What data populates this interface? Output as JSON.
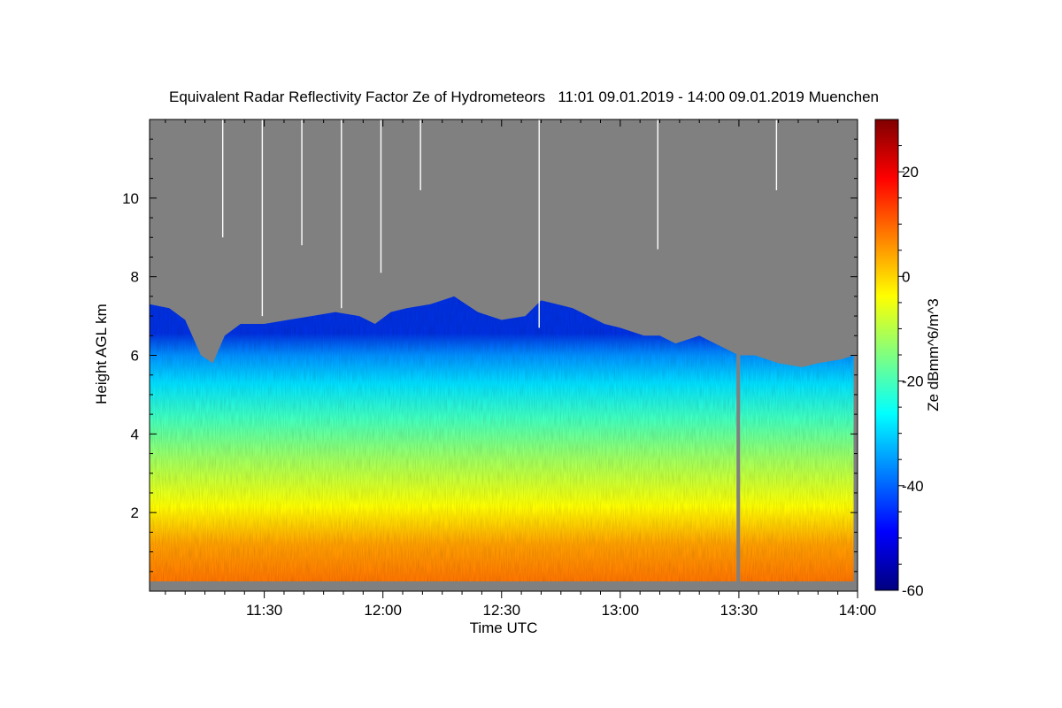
{
  "chart_data": {
    "type": "heatmap",
    "title": "Equivalent Radar Reflectivity Factor Ze of Hydrometeors   11:01 09.01.2019 - 14:00 09.01.2019 Muenchen",
    "xlabel": "Time UTC",
    "ylabel": "Height AGL km",
    "colorbar_label": "Ze dBmm^6/m^3",
    "x_range": [
      "11:01",
      "14:00"
    ],
    "y_range_km": [
      0,
      12
    ],
    "x_ticks": [
      "11:30",
      "12:00",
      "12:30",
      "13:00",
      "13:30",
      "14:00"
    ],
    "x_tick_minutes": [
      29,
      59,
      89,
      119,
      149,
      179
    ],
    "y_ticks": [
      2,
      4,
      6,
      8,
      10
    ],
    "colorbar_range": [
      -60,
      30
    ],
    "colorbar_ticks": [
      20,
      0,
      -20,
      -40,
      -60
    ],
    "colormap": [
      "#00007f",
      "#0000ff",
      "#0080ff",
      "#00ffff",
      "#80ff80",
      "#ffff00",
      "#ff8000",
      "#ff0000",
      "#7f0000"
    ],
    "no_echo_color": "#808080",
    "echo_top_km_profile": [
      [
        1,
        7.3
      ],
      [
        6,
        7.2
      ],
      [
        10,
        6.9
      ],
      [
        14,
        6.0
      ],
      [
        17,
        5.8
      ],
      [
        20,
        6.5
      ],
      [
        24,
        6.8
      ],
      [
        30,
        6.8
      ],
      [
        36,
        6.9
      ],
      [
        42,
        7.0
      ],
      [
        48,
        7.1
      ],
      [
        54,
        7.0
      ],
      [
        58,
        6.8
      ],
      [
        62,
        7.1
      ],
      [
        66,
        7.2
      ],
      [
        72,
        7.3
      ],
      [
        78,
        7.5
      ],
      [
        84,
        7.1
      ],
      [
        90,
        6.9
      ],
      [
        96,
        7.0
      ],
      [
        100,
        7.4
      ],
      [
        104,
        7.3
      ],
      [
        108,
        7.2
      ],
      [
        112,
        7.0
      ],
      [
        116,
        6.8
      ],
      [
        120,
        6.7
      ],
      [
        126,
        6.5
      ],
      [
        130,
        6.5
      ],
      [
        134,
        6.3
      ],
      [
        140,
        6.5
      ],
      [
        146,
        6.2
      ],
      [
        150,
        6.0
      ],
      [
        154,
        6.0
      ],
      [
        160,
        5.8
      ],
      [
        166,
        5.7
      ],
      [
        170,
        5.8
      ],
      [
        176,
        5.9
      ],
      [
        179,
        6.0
      ]
    ]
  }
}
